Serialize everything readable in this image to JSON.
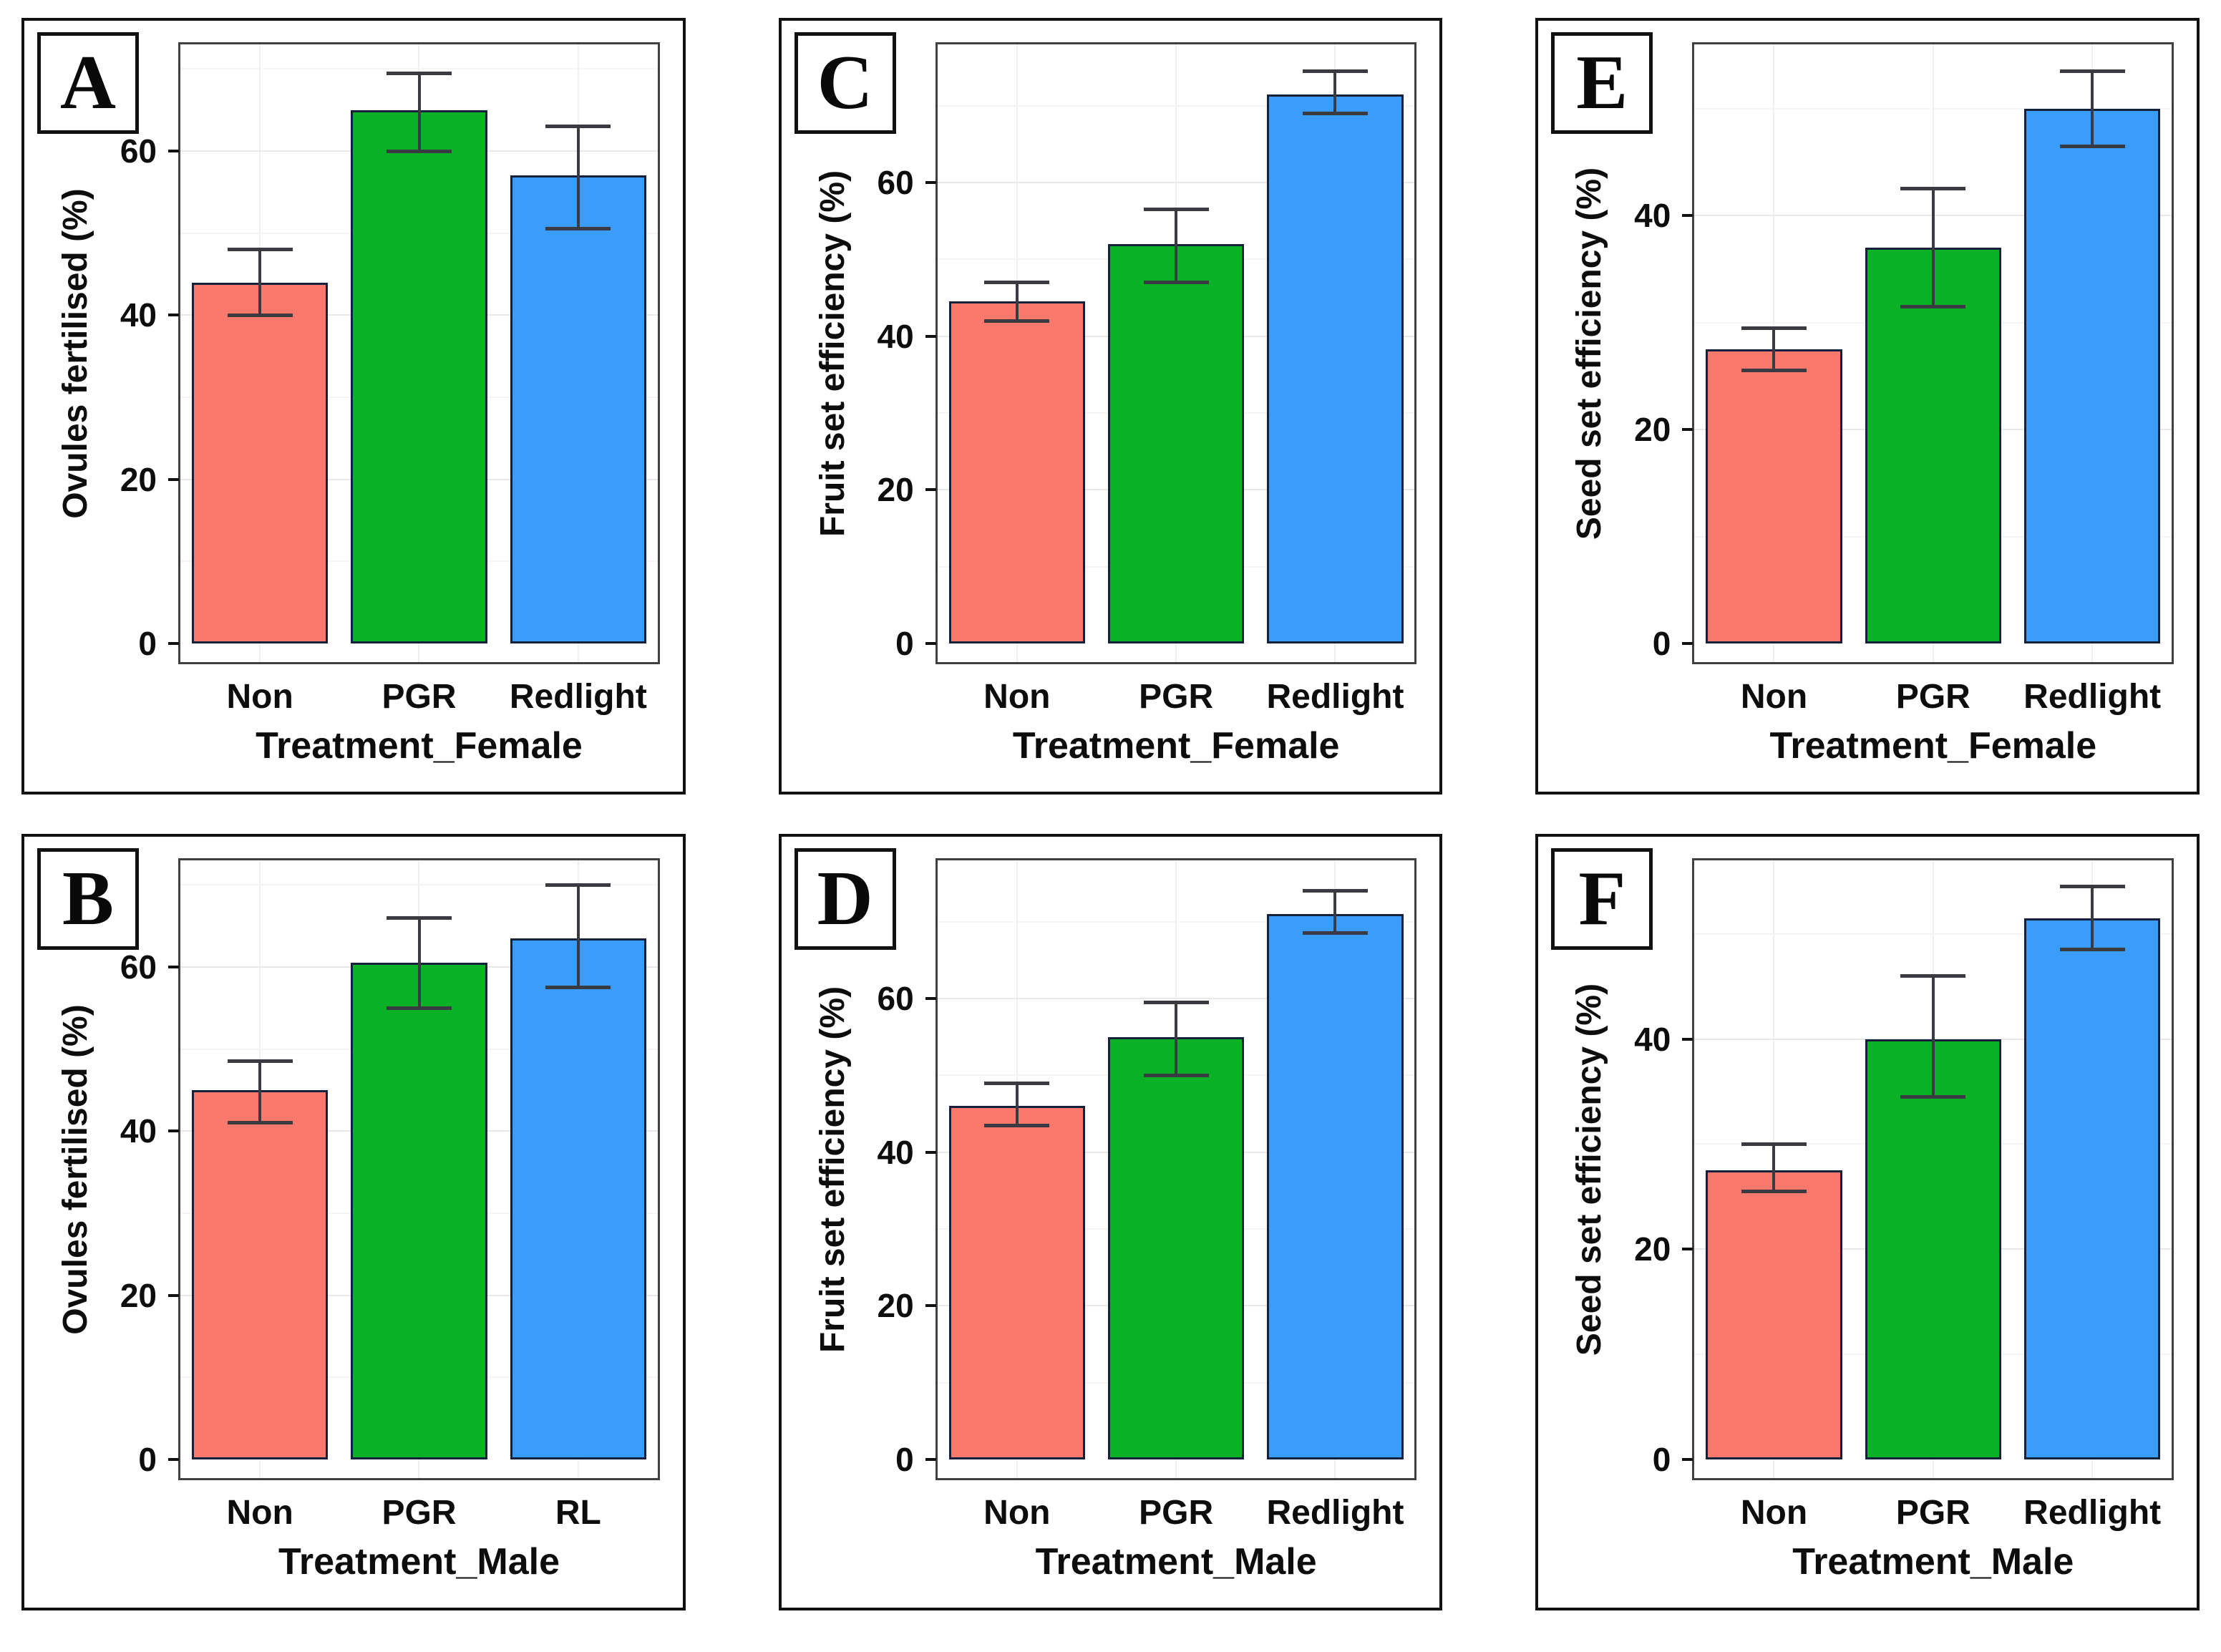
{
  "figure": {
    "panel_letters": [
      "A",
      "B",
      "C",
      "D",
      "E",
      "F"
    ]
  },
  "colors": {
    "bars": [
      "#FB786D",
      "#09B224",
      "#3A9DFB"
    ],
    "bar_border": "#15203A",
    "error_bar": "#3A3A42",
    "grid_major": "#E8E8E8",
    "grid_minor": "#F4F4F4",
    "axis_text": "#0D0D0D",
    "panel_border": "#111111",
    "plot_border": "#404040",
    "background": "#FFFFFF"
  },
  "chart_data": [
    {
      "id": "A",
      "type": "bar",
      "xlabel": "Treatment_Female",
      "ylabel": "Ovules fertilised (%)",
      "categories": [
        "Non",
        "PGR",
        "Redlight"
      ],
      "values": [
        44,
        65,
        57
      ],
      "error_low": [
        40,
        60,
        50.5
      ],
      "error_high": [
        48,
        69.5,
        63
      ],
      "yticks": [
        0,
        20,
        40,
        60
      ],
      "ylim": [
        0,
        73
      ],
      "grid": true,
      "legend": "none"
    },
    {
      "id": "C",
      "type": "bar",
      "xlabel": "Treatment_Female",
      "ylabel": "Fruit set efficiency (%)",
      "categories": [
        "Non",
        "PGR",
        "Redlight"
      ],
      "values": [
        44.5,
        52,
        71.5
      ],
      "error_low": [
        42,
        47,
        69
      ],
      "error_high": [
        47,
        56.5,
        74.5
      ],
      "yticks": [
        0,
        20,
        40,
        60
      ],
      "ylim": [
        0,
        78
      ],
      "grid": true,
      "legend": "none"
    },
    {
      "id": "E",
      "type": "bar",
      "xlabel": "Treatment_Female",
      "ylabel": "Seed set efficiency (%)",
      "categories": [
        "Non",
        "PGR",
        "Redlight"
      ],
      "values": [
        27.5,
        37,
        50
      ],
      "error_low": [
        25.5,
        31.5,
        46.5
      ],
      "error_high": [
        29.5,
        42.5,
        53.5
      ],
      "yticks": [
        0,
        20,
        40
      ],
      "ylim": [
        0,
        56
      ],
      "grid": true,
      "legend": "none"
    },
    {
      "id": "B",
      "type": "bar",
      "xlabel": "Treatment_Male",
      "ylabel": "Ovules fertilised (%)",
      "categories": [
        "Non",
        "PGR",
        "RL"
      ],
      "values": [
        45,
        60.5,
        63.5
      ],
      "error_low": [
        41,
        55,
        57.5
      ],
      "error_high": [
        48.5,
        66,
        70
      ],
      "yticks": [
        0,
        20,
        40,
        60
      ],
      "ylim": [
        0,
        73
      ],
      "grid": true,
      "legend": "none"
    },
    {
      "id": "D",
      "type": "bar",
      "xlabel": "Treatment_Male",
      "ylabel": "Fruit set efficiency (%)",
      "categories": [
        "Non",
        "PGR",
        "Redlight"
      ],
      "values": [
        46,
        55,
        71
      ],
      "error_low": [
        43.5,
        50,
        68.5
      ],
      "error_high": [
        49,
        59.5,
        74
      ],
      "yticks": [
        0,
        20,
        40,
        60
      ],
      "ylim": [
        0,
        78
      ],
      "grid": true,
      "legend": "none"
    },
    {
      "id": "F",
      "type": "bar",
      "xlabel": "Treatment_Male",
      "ylabel": "Seed set efficiency (%)",
      "categories": [
        "Non",
        "PGR",
        "Redlight"
      ],
      "values": [
        27.5,
        40,
        51.5
      ],
      "error_low": [
        25.5,
        34.5,
        48.5
      ],
      "error_high": [
        30,
        46,
        54.5
      ],
      "yticks": [
        0,
        20,
        40
      ],
      "ylim": [
        0,
        57
      ],
      "grid": true,
      "legend": "none"
    }
  ]
}
